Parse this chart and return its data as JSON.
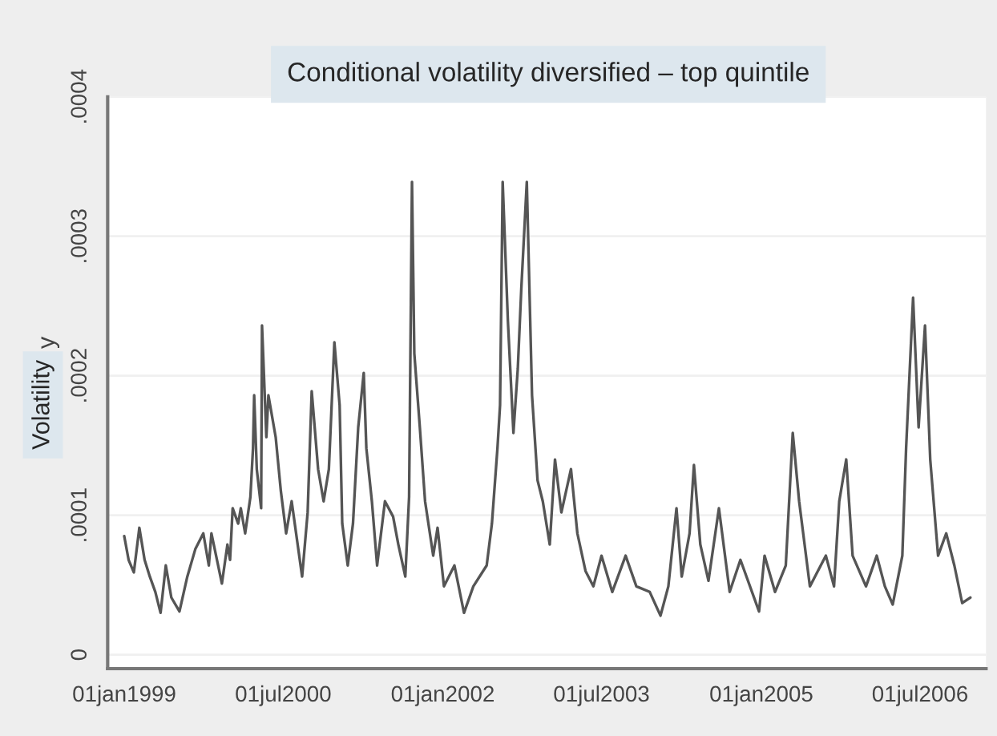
{
  "chart_data": {
    "type": "line",
    "title": "Conditional volatility diversified – top quintile",
    "ylabel": "y",
    "annotations": [
      "Volatility"
    ],
    "x": [
      "1999-01-01",
      "1999-01-16",
      "1999-02-03",
      "1999-02-22",
      "1999-03-12",
      "1999-03-30",
      "1999-04-18",
      "1999-05-06",
      "1999-05-24",
      "1999-06-12",
      "1999-07-10",
      "1999-08-06",
      "1999-09-03",
      "1999-09-30",
      "1999-10-19",
      "1999-10-28",
      "1999-12-03",
      "1999-12-22",
      "1999-12-31",
      "2000-01-09",
      "2000-01-28",
      "2000-02-06",
      "2000-02-21",
      "2000-03-10",
      "2000-03-19",
      "2000-03-23",
      "2000-04-01",
      "2000-04-16",
      "2000-04-19",
      "2000-05-04",
      "2000-05-11",
      "2000-06-05",
      "2000-06-23",
      "2000-07-11",
      "2000-07-30",
      "2000-09-04",
      "2000-09-23",
      "2000-10-07",
      "2000-10-29",
      "2000-11-17",
      "2000-12-05",
      "2000-12-24",
      "2001-01-11",
      "2001-01-20",
      "2001-02-08",
      "2001-02-26",
      "2001-03-16",
      "2001-04-04",
      "2001-04-13",
      "2001-05-02",
      "2001-05-20",
      "2001-06-16",
      "2001-07-14",
      "2001-08-01",
      "2001-08-25",
      "2001-09-07",
      "2001-09-17",
      "2001-09-25",
      "2001-10-14",
      "2001-11-01",
      "2001-11-29",
      "2001-12-14",
      "2002-01-05",
      "2002-02-10",
      "2002-03-15",
      "2002-04-16",
      "2002-06-01",
      "2002-06-19",
      "2002-07-08",
      "2002-07-17",
      "2002-07-26",
      "2002-08-13",
      "2002-09-01",
      "2002-09-16",
      "2002-09-28",
      "2002-10-17",
      "2002-11-04",
      "2002-11-23",
      "2002-12-11",
      "2003-01-04",
      "2003-01-22",
      "2003-02-13",
      "2003-03-18",
      "2003-04-09",
      "2003-05-07",
      "2003-06-03",
      "2003-07-01",
      "2003-08-07",
      "2003-09-22",
      "2003-10-29",
      "2003-12-14",
      "2004-01-20",
      "2004-02-16",
      "2004-03-15",
      "2004-04-02",
      "2004-04-29",
      "2004-05-14",
      "2004-06-05",
      "2004-07-03",
      "2004-08-08",
      "2004-09-14",
      "2004-10-21",
      "2004-12-24",
      "2005-01-12",
      "2005-02-17",
      "2005-03-26",
      "2005-04-19",
      "2005-05-11",
      "2005-06-17",
      "2005-08-11",
      "2005-09-08",
      "2005-09-26",
      "2005-10-20",
      "2005-11-11",
      "2005-12-27",
      "2006-02-02",
      "2006-03-02",
      "2006-03-29",
      "2006-05-01",
      "2006-05-14",
      "2006-06-07",
      "2006-06-26",
      "2006-07-18",
      "2006-08-05",
      "2006-09-01",
      "2006-09-29",
      "2006-10-27",
      "2006-11-23",
      "2006-12-21"
    ],
    "series": [
      {
        "color": "#555555",
        "values": [
          8.5e-05,
          6.8e-05,
          5.9e-05,
          9.1e-05,
          6.8e-05,
          5.6e-05,
          4.5e-05,
          3e-05,
          6.4e-05,
          4.1e-05,
          3.1e-05,
          5.6e-05,
          7.6e-05,
          8.7e-05,
          6.4e-05,
          8.7e-05,
          5.1e-05,
          7.9e-05,
          6.8e-05,
          0.000105,
          9.4e-05,
          0.000105,
          8.7e-05,
          0.000113,
          0.000148,
          0.000186,
          0.000133,
          0.000105,
          0.000236,
          0.000156,
          0.000186,
          0.000156,
          0.000117,
          8.7e-05,
          0.00011,
          5.6e-05,
          0.000102,
          0.000189,
          0.000133,
          0.00011,
          0.000133,
          0.000224,
          0.000179,
          9.4e-05,
          6.4e-05,
          9.4e-05,
          0.000163,
          0.000202,
          0.000148,
          0.00011,
          6.4e-05,
          0.00011,
          9.9e-05,
          7.9e-05,
          5.6e-05,
          0.000113,
          0.000339,
          0.000216,
          0.000163,
          0.00011,
          7.1e-05,
          9.1e-05,
          4.9e-05,
          6.4e-05,
          3e-05,
          4.9e-05,
          6.4e-05,
          9.4e-05,
          0.000148,
          0.000179,
          0.000339,
          0.000239,
          0.000159,
          0.000205,
          0.000262,
          0.000339,
          0.000186,
          0.000125,
          0.00011,
          7.9e-05,
          0.00014,
          0.000102,
          0.000133,
          8.7e-05,
          6e-05,
          4.9e-05,
          7.1e-05,
          4.5e-05,
          7.1e-05,
          4.9e-05,
          4.5e-05,
          2.8e-05,
          4.9e-05,
          0.000105,
          5.6e-05,
          8.7e-05,
          0.000136,
          7.9e-05,
          5.3e-05,
          0.000105,
          4.5e-05,
          6.8e-05,
          3.1e-05,
          7.1e-05,
          4.5e-05,
          6.4e-05,
          0.000159,
          0.00011,
          4.9e-05,
          7.1e-05,
          4.9e-05,
          0.00011,
          0.00014,
          7.1e-05,
          4.9e-05,
          7.1e-05,
          4.9e-05,
          3.6e-05,
          7.1e-05,
          0.000148,
          0.000256,
          0.000163,
          0.000236,
          0.00014,
          7.1e-05,
          8.7e-05,
          6.4e-05,
          3.7e-05,
          4.1e-05
        ]
      }
    ],
    "xlim": [
      "1998-11-05",
      "2007-02-13"
    ],
    "xticks": [
      {
        "value": "1999-01-01",
        "label": "01jan1999"
      },
      {
        "value": "2000-07-01",
        "label": "01jul2000"
      },
      {
        "value": "2002-01-01",
        "label": "01jan2002"
      },
      {
        "value": "2003-07-01",
        "label": "01jul2003"
      },
      {
        "value": "2005-01-01",
        "label": "01jan2005"
      },
      {
        "value": "2006-07-01",
        "label": "01jul2006"
      }
    ],
    "ylim": [
      -1e-05,
      0.0004
    ],
    "yticks": [
      {
        "value": 0,
        "label": "0"
      },
      {
        "value": 0.0001,
        "label": ".0001"
      },
      {
        "value": 0.0002,
        "label": ".0002"
      },
      {
        "value": 0.0003,
        "label": ".0003"
      },
      {
        "value": 0.0004,
        "label": ".0004"
      }
    ],
    "grid": "y",
    "marker": "none",
    "line_style": "solid"
  }
}
